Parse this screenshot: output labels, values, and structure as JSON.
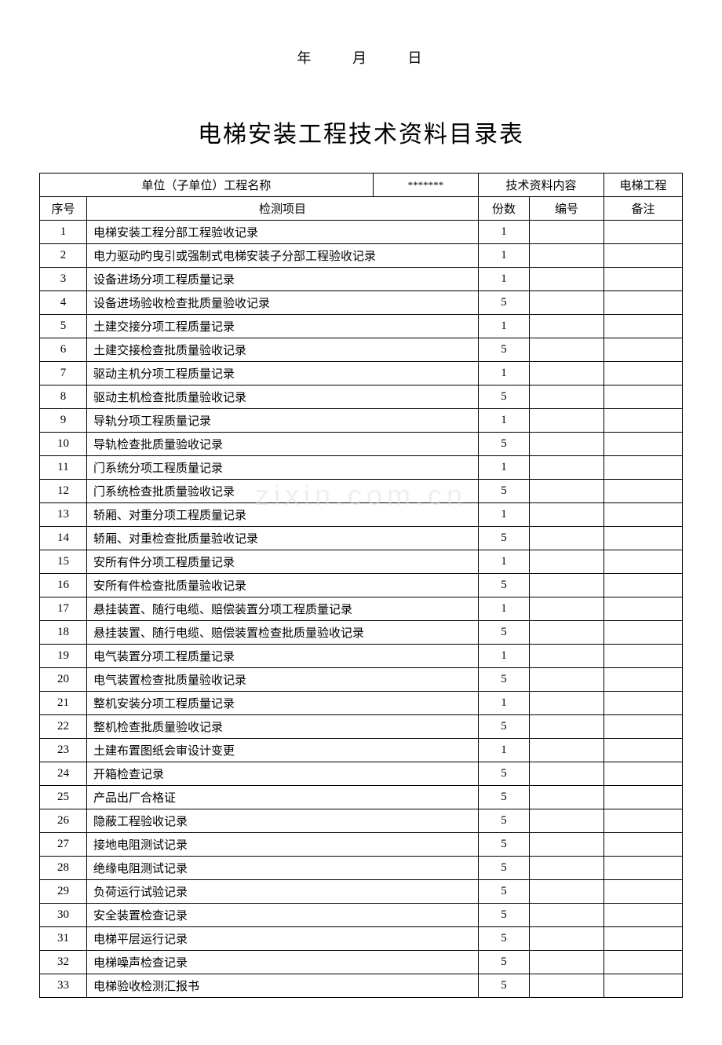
{
  "date": {
    "year": "年",
    "month": "月",
    "day": "日"
  },
  "title": "电梯安装工程技术资料目录表",
  "header": {
    "unit_label": "单位（子单位）工程名称",
    "unit_value": "*******",
    "tech_content_label": "技术资料内容",
    "project_type": "电梯工程"
  },
  "columns": {
    "seq": "序号",
    "item": "检测项目",
    "count": "份数",
    "number": "编号",
    "remark": "备注"
  },
  "watermark": "zixin.com.cn",
  "rows": [
    {
      "seq": "1",
      "item": "电梯安装工程分部工程验收记录",
      "count": "1",
      "number": "",
      "remark": ""
    },
    {
      "seq": "2",
      "item": "电力驱动旳曳引或强制式电梯安装子分部工程验收记录",
      "count": "1",
      "number": "",
      "remark": ""
    },
    {
      "seq": "3",
      "item": "设备进场分项工程质量记录",
      "count": "1",
      "number": "",
      "remark": ""
    },
    {
      "seq": "4",
      "item": "设备进场验收检查批质量验收记录",
      "count": "5",
      "number": "",
      "remark": ""
    },
    {
      "seq": "5",
      "item": "土建交接分项工程质量记录",
      "count": "1",
      "number": "",
      "remark": ""
    },
    {
      "seq": "6",
      "item": "土建交接检查批质量验收记录",
      "count": "5",
      "number": "",
      "remark": ""
    },
    {
      "seq": "7",
      "item": "驱动主机分项工程质量记录",
      "count": "1",
      "number": "",
      "remark": ""
    },
    {
      "seq": "8",
      "item": "驱动主机检查批质量验收记录",
      "count": "5",
      "number": "",
      "remark": ""
    },
    {
      "seq": "9",
      "item": "导轨分项工程质量记录",
      "count": "1",
      "number": "",
      "remark": ""
    },
    {
      "seq": "10",
      "item": "导轨检查批质量验收记录",
      "count": "5",
      "number": "",
      "remark": ""
    },
    {
      "seq": "11",
      "item": "门系统分项工程质量记录",
      "count": "1",
      "number": "",
      "remark": ""
    },
    {
      "seq": "12",
      "item": "门系统检查批质量验收记录",
      "count": "5",
      "number": "",
      "remark": ""
    },
    {
      "seq": "13",
      "item": "轿厢、对重分项工程质量记录",
      "count": "1",
      "number": "",
      "remark": ""
    },
    {
      "seq": "14",
      "item": "轿厢、对重检查批质量验收记录",
      "count": "5",
      "number": "",
      "remark": ""
    },
    {
      "seq": "15",
      "item": "安所有件分项工程质量记录",
      "count": "1",
      "number": "",
      "remark": ""
    },
    {
      "seq": "16",
      "item": "安所有件检查批质量验收记录",
      "count": "5",
      "number": "",
      "remark": ""
    },
    {
      "seq": "17",
      "item": "悬挂装置、随行电缆、赔偿装置分项工程质量记录",
      "count": "1",
      "number": "",
      "remark": ""
    },
    {
      "seq": "18",
      "item": "悬挂装置、随行电缆、赔偿装置检查批质量验收记录",
      "count": "5",
      "number": "",
      "remark": ""
    },
    {
      "seq": "19",
      "item": "电气装置分项工程质量记录",
      "count": "1",
      "number": "",
      "remark": ""
    },
    {
      "seq": "20",
      "item": "电气装置检查批质量验收记录",
      "count": "5",
      "number": "",
      "remark": ""
    },
    {
      "seq": "21",
      "item": "整机安装分项工程质量记录",
      "count": "1",
      "number": "",
      "remark": ""
    },
    {
      "seq": "22",
      "item": "整机检查批质量验收记录",
      "count": "5",
      "number": "",
      "remark": ""
    },
    {
      "seq": "23",
      "item": "土建布置图纸会审设计变更",
      "count": "1",
      "number": "",
      "remark": ""
    },
    {
      "seq": "24",
      "item": "开箱检查记录",
      "count": "5",
      "number": "",
      "remark": ""
    },
    {
      "seq": "25",
      "item": "产品出厂合格证",
      "count": "5",
      "number": "",
      "remark": ""
    },
    {
      "seq": "26",
      "item": "隐蔽工程验收记录",
      "count": "5",
      "number": "",
      "remark": ""
    },
    {
      "seq": "27",
      "item": "接地电阻测试记录",
      "count": "5",
      "number": "",
      "remark": ""
    },
    {
      "seq": "28",
      "item": "绝缘电阻测试记录",
      "count": "5",
      "number": "",
      "remark": ""
    },
    {
      "seq": "29",
      "item": "负荷运行试验记录",
      "count": "5",
      "number": "",
      "remark": ""
    },
    {
      "seq": "30",
      "item": "安全装置检查记录",
      "count": "5",
      "number": "",
      "remark": ""
    },
    {
      "seq": "31",
      "item": "电梯平层运行记录",
      "count": "5",
      "number": "",
      "remark": ""
    },
    {
      "seq": "32",
      "item": "电梯噪声检查记录",
      "count": "5",
      "number": "",
      "remark": ""
    },
    {
      "seq": "33",
      "item": "电梯验收检测汇报书",
      "count": "5",
      "number": "",
      "remark": ""
    }
  ]
}
